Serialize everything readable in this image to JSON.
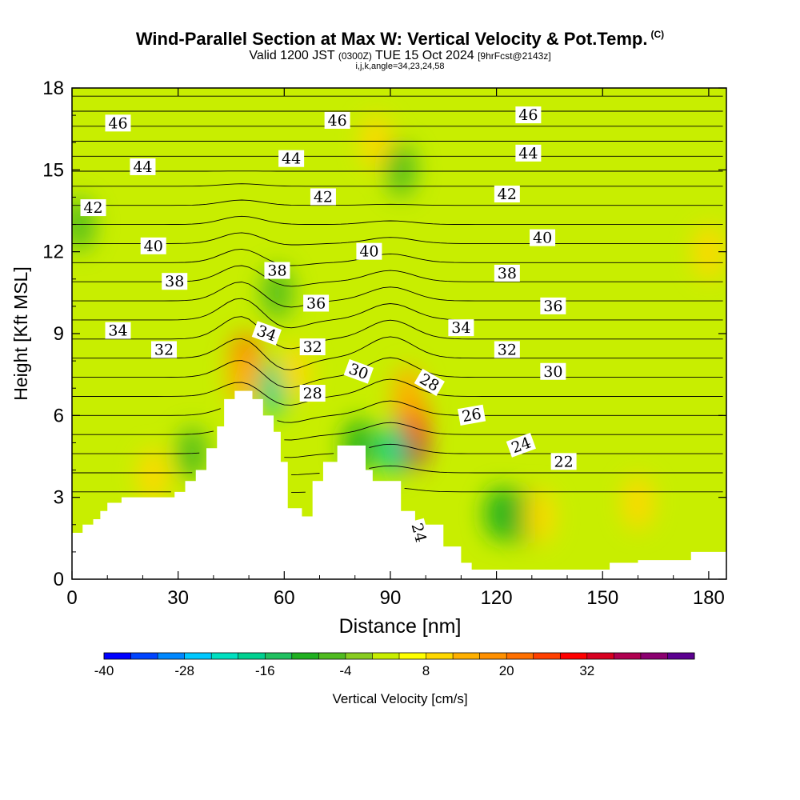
{
  "title": "Wind-Parallel Section at Max W: Vertical Velocity & Pot.Temp.",
  "title_mark": "(C)",
  "subtitle": {
    "prefix": "Valid 1200 JST",
    "utc": "(0300Z)",
    "date": "TUE 15 Oct 2024",
    "fcst": "[9hrFcst@2143z]"
  },
  "subinfo": "i,j,k,angle=34,23,24,58",
  "chart_data": {
    "type": "heatmap",
    "xlabel": "Distance [nm]",
    "ylabel": "Height [Kft MSL]",
    "xlim": [
      0,
      185
    ],
    "ylim": [
      0,
      18
    ],
    "x_ticks": [
      "0",
      "30",
      "60",
      "90",
      "120",
      "150",
      "180"
    ],
    "y_ticks": [
      "0",
      "3",
      "6",
      "9",
      "12",
      "15",
      "18"
    ],
    "terrain": [
      [
        0,
        1.7
      ],
      [
        3,
        1.7
      ],
      [
        3,
        2.0
      ],
      [
        6,
        2.0
      ],
      [
        6,
        2.2
      ],
      [
        8,
        2.2
      ],
      [
        8,
        2.5
      ],
      [
        10,
        2.5
      ],
      [
        10,
        2.8
      ],
      [
        14,
        2.8
      ],
      [
        14,
        3.0
      ],
      [
        29,
        3.0
      ],
      [
        29,
        3.2
      ],
      [
        32,
        3.2
      ],
      [
        32,
        3.6
      ],
      [
        35,
        3.6
      ],
      [
        35,
        4.0
      ],
      [
        38,
        4.0
      ],
      [
        38,
        4.8
      ],
      [
        41,
        4.8
      ],
      [
        41,
        5.6
      ],
      [
        43,
        5.6
      ],
      [
        43,
        6.6
      ],
      [
        46,
        6.6
      ],
      [
        46,
        6.9
      ],
      [
        51,
        6.9
      ],
      [
        51,
        6.6
      ],
      [
        54,
        6.6
      ],
      [
        54,
        6.0
      ],
      [
        57,
        6.0
      ],
      [
        57,
        5.4
      ],
      [
        59,
        5.4
      ],
      [
        59,
        4.3
      ],
      [
        61,
        4.3
      ],
      [
        61,
        2.6
      ],
      [
        65,
        2.6
      ],
      [
        65,
        2.3
      ],
      [
        68,
        2.3
      ],
      [
        68,
        3.6
      ],
      [
        71,
        3.6
      ],
      [
        71,
        4.3
      ],
      [
        75,
        4.3
      ],
      [
        75,
        4.9
      ],
      [
        83,
        4.9
      ],
      [
        83,
        4.0
      ],
      [
        85,
        4.0
      ],
      [
        85,
        3.6
      ],
      [
        93,
        3.6
      ],
      [
        93,
        2.5
      ],
      [
        97,
        2.5
      ],
      [
        97,
        2.0
      ],
      [
        105,
        2.0
      ],
      [
        105,
        1.2
      ],
      [
        110,
        1.2
      ],
      [
        110,
        0.6
      ],
      [
        113,
        0.6
      ],
      [
        113,
        0.35
      ],
      [
        152,
        0.35
      ],
      [
        152,
        0.6
      ],
      [
        160,
        0.6
      ],
      [
        160,
        0.7
      ],
      [
        175,
        0.7
      ],
      [
        175,
        1.0
      ],
      [
        185,
        1.0
      ]
    ],
    "wind_cells": [
      {
        "x": 49,
        "z": 8.0,
        "w": 22
      },
      {
        "x": 48.5,
        "z": 7.4,
        "w": 14
      },
      {
        "x": 96,
        "z": 5.0,
        "w": 36
      },
      {
        "x": 96,
        "z": 5.9,
        "w": 26
      },
      {
        "x": 95,
        "z": 6.8,
        "w": 14
      },
      {
        "x": 57,
        "z": 7.0,
        "w": -20
      },
      {
        "x": 91,
        "z": 4.8,
        "w": -18
      },
      {
        "x": 81,
        "z": 4.9,
        "w": -10
      },
      {
        "x": 86,
        "z": 16,
        "w": 10
      },
      {
        "x": 93,
        "z": 15,
        "w": -8
      },
      {
        "x": 58,
        "z": 10.5,
        "w": -6
      },
      {
        "x": 63,
        "z": 7.6,
        "w": 8
      },
      {
        "x": 121,
        "z": 2.4,
        "w": -12
      },
      {
        "x": 127,
        "z": 2.3,
        "w": -10
      },
      {
        "x": 132,
        "z": 2.3,
        "w": 8
      },
      {
        "x": 160,
        "z": 2.8,
        "w": 8
      },
      {
        "x": 23,
        "z": 3.8,
        "w": 8
      },
      {
        "x": 34,
        "z": 4.6,
        "w": -6
      },
      {
        "x": 180,
        "z": 12,
        "w": 8
      },
      {
        "x": 2,
        "z": 13,
        "w": -6
      }
    ],
    "isentrope_labels": [
      {
        "value": "46",
        "x": 13,
        "z": 16.7,
        "rot": 0
      },
      {
        "value": "46",
        "x": 75,
        "z": 16.8,
        "rot": 0
      },
      {
        "value": "46",
        "x": 129,
        "z": 17.0,
        "rot": 0
      },
      {
        "value": "44",
        "x": 20,
        "z": 15.1,
        "rot": 0
      },
      {
        "value": "44",
        "x": 62,
        "z": 15.4,
        "rot": 0
      },
      {
        "value": "44",
        "x": 129,
        "z": 15.6,
        "rot": 0
      },
      {
        "value": "42",
        "x": 6,
        "z": 13.6,
        "rot": 0
      },
      {
        "value": "42",
        "x": 71,
        "z": 14.0,
        "rot": 0
      },
      {
        "value": "42",
        "x": 123,
        "z": 14.1,
        "rot": 0
      },
      {
        "value": "40",
        "x": 23,
        "z": 12.2,
        "rot": 0
      },
      {
        "value": "40",
        "x": 84,
        "z": 12.0,
        "rot": 0
      },
      {
        "value": "40",
        "x": 133,
        "z": 12.5,
        "rot": 0
      },
      {
        "value": "38",
        "x": 29,
        "z": 10.9,
        "rot": 0
      },
      {
        "value": "38",
        "x": 58,
        "z": 11.3,
        "rot": 0
      },
      {
        "value": "38",
        "x": 123,
        "z": 11.2,
        "rot": 0
      },
      {
        "value": "36",
        "x": 69,
        "z": 10.1,
        "rot": 0
      },
      {
        "value": "36",
        "x": 136,
        "z": 10.0,
        "rot": 0
      },
      {
        "value": "34",
        "x": 13,
        "z": 9.1,
        "rot": 0
      },
      {
        "value": "34",
        "x": 55,
        "z": 9.0,
        "rot": 20
      },
      {
        "value": "34",
        "x": 110,
        "z": 9.2,
        "rot": 0
      },
      {
        "value": "32",
        "x": 26,
        "z": 8.4,
        "rot": 0
      },
      {
        "value": "32",
        "x": 68,
        "z": 8.5,
        "rot": 0
      },
      {
        "value": "32",
        "x": 123,
        "z": 8.4,
        "rot": 0
      },
      {
        "value": "30",
        "x": 81,
        "z": 7.6,
        "rot": 20
      },
      {
        "value": "30",
        "x": 136,
        "z": 7.6,
        "rot": 0
      },
      {
        "value": "28",
        "x": 68,
        "z": 6.8,
        "rot": 0
      },
      {
        "value": "28",
        "x": 101,
        "z": 7.2,
        "rot": 30
      },
      {
        "value": "26",
        "x": 113,
        "z": 6.0,
        "rot": -10
      },
      {
        "value": "24",
        "x": 127,
        "z": 4.9,
        "rot": -20
      },
      {
        "value": "22",
        "x": 139,
        "z": 4.3,
        "rot": 0
      },
      {
        "value": "24",
        "x": 98,
        "z": 1.7,
        "rot": 75
      }
    ],
    "colorbar": {
      "label": "Vertical Velocity [cm/s]",
      "tick_labels": [
        "-40",
        "-28",
        "-16",
        "-4",
        "8",
        "20",
        "32"
      ],
      "colors": [
        "#0000ff",
        "#0044ff",
        "#0088ff",
        "#00c8ff",
        "#00e0c0",
        "#00d090",
        "#20c060",
        "#20b020",
        "#50bb20",
        "#88cc20",
        "#c8ee00",
        "#ffff00",
        "#ffd800",
        "#ffb000",
        "#ff9000",
        "#ff7000",
        "#ff4000",
        "#ff0000",
        "#d80020",
        "#b00050",
        "#8c0070",
        "#5c0090"
      ]
    }
  }
}
